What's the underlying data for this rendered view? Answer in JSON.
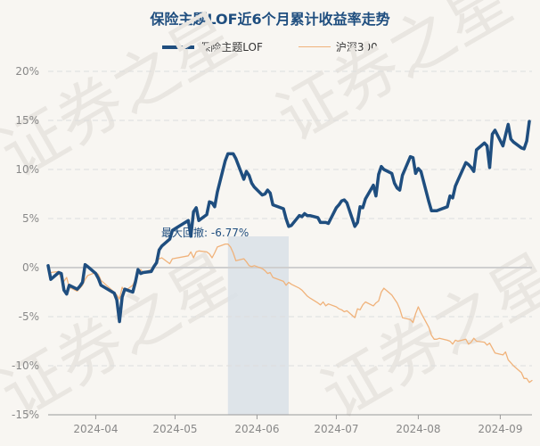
{
  "chart_data": {
    "type": "line",
    "title": "保险主题LOF近6个月累计收益率走势",
    "y_unit": "%",
    "ylim": [
      -15,
      20
    ],
    "y_ticks": [
      20,
      15,
      10,
      5,
      0,
      -5,
      -10,
      -15
    ],
    "y_tick_labels": [
      "20%",
      "15%",
      "10%",
      "5%",
      "0%",
      "-5%",
      "-10%",
      "-15%"
    ],
    "xlim": [
      "2024-03-14",
      "2024-09-13"
    ],
    "x_ticks": [
      "2024-04-01",
      "2024-05-01",
      "2024-06-01",
      "2024-07-01",
      "2024-08-01",
      "2024-09-01"
    ],
    "x_tick_labels": [
      "2024-04",
      "2024-05",
      "2024-06",
      "2024-07",
      "2024-08",
      "2024-09"
    ],
    "grid": true,
    "legend_position": "top-center",
    "series": [
      {
        "name": "保险主题LOF",
        "color": "#1f4e7f",
        "points": [
          [
            "2024-03-14",
            0.2
          ],
          [
            "2024-03-15",
            -1.2
          ],
          [
            "2024-03-18",
            -0.5
          ],
          [
            "2024-03-19",
            -0.6
          ],
          [
            "2024-03-20",
            -2.3
          ],
          [
            "2024-03-21",
            -2.7
          ],
          [
            "2024-03-22",
            -1.8
          ],
          [
            "2024-03-25",
            -2.2
          ],
          [
            "2024-03-26",
            -1.9
          ],
          [
            "2024-03-27",
            -1.5
          ],
          [
            "2024-03-28",
            0.3
          ],
          [
            "2024-03-29",
            0.1
          ],
          [
            "2024-04-01",
            -0.6
          ],
          [
            "2024-04-02",
            -1.1
          ],
          [
            "2024-04-03",
            -1.8
          ],
          [
            "2024-04-08",
            -2.6
          ],
          [
            "2024-04-09",
            -3.3
          ],
          [
            "2024-04-10",
            -5.5
          ],
          [
            "2024-04-11",
            -3.0
          ],
          [
            "2024-04-12",
            -2.2
          ],
          [
            "2024-04-15",
            -2.5
          ],
          [
            "2024-04-16",
            -1.5
          ],
          [
            "2024-04-17",
            -0.2
          ],
          [
            "2024-04-18",
            -0.6
          ],
          [
            "2024-04-19",
            -0.5
          ],
          [
            "2024-04-22",
            -0.4
          ],
          [
            "2024-04-23",
            0.1
          ],
          [
            "2024-04-24",
            0.5
          ],
          [
            "2024-04-25",
            1.8
          ],
          [
            "2024-04-26",
            2.2
          ],
          [
            "2024-04-29",
            2.9
          ],
          [
            "2024-04-30",
            3.8
          ],
          [
            "2024-05-06",
            4.8
          ],
          [
            "2024-05-07",
            3.2
          ],
          [
            "2024-05-08",
            5.7
          ],
          [
            "2024-05-09",
            6.1
          ],
          [
            "2024-05-10",
            4.8
          ],
          [
            "2024-05-13",
            5.4
          ],
          [
            "2024-05-14",
            6.7
          ],
          [
            "2024-05-15",
            6.6
          ],
          [
            "2024-05-16",
            6.2
          ],
          [
            "2024-05-17",
            7.7
          ],
          [
            "2024-05-20",
            10.9
          ],
          [
            "2024-05-21",
            11.6
          ],
          [
            "2024-05-22",
            11.6
          ],
          [
            "2024-05-23",
            11.6
          ],
          [
            "2024-05-24",
            11.1
          ],
          [
            "2024-05-27",
            9.0
          ],
          [
            "2024-05-28",
            9.8
          ],
          [
            "2024-05-29",
            9.4
          ],
          [
            "2024-05-30",
            8.6
          ],
          [
            "2024-05-31",
            8.2
          ],
          [
            "2024-06-03",
            7.4
          ],
          [
            "2024-06-04",
            7.5
          ],
          [
            "2024-06-05",
            7.9
          ],
          [
            "2024-06-06",
            7.6
          ],
          [
            "2024-06-07",
            6.4
          ],
          [
            "2024-06-11",
            6.0
          ],
          [
            "2024-06-12",
            5.0
          ],
          [
            "2024-06-13",
            4.2
          ],
          [
            "2024-06-14",
            4.3
          ],
          [
            "2024-06-17",
            5.3
          ],
          [
            "2024-06-18",
            5.2
          ],
          [
            "2024-06-19",
            5.5
          ],
          [
            "2024-06-20",
            5.3
          ],
          [
            "2024-06-21",
            5.3
          ],
          [
            "2024-06-24",
            5.1
          ],
          [
            "2024-06-25",
            4.6
          ],
          [
            "2024-06-26",
            4.6
          ],
          [
            "2024-06-27",
            4.6
          ],
          [
            "2024-06-28",
            4.5
          ],
          [
            "2024-07-01",
            6.1
          ],
          [
            "2024-07-02",
            6.4
          ],
          [
            "2024-07-03",
            6.8
          ],
          [
            "2024-07-04",
            6.9
          ],
          [
            "2024-07-05",
            6.6
          ],
          [
            "2024-07-08",
            4.2
          ],
          [
            "2024-07-09",
            4.6
          ],
          [
            "2024-07-10",
            6.2
          ],
          [
            "2024-07-11",
            6.1
          ],
          [
            "2024-07-12",
            7.0
          ],
          [
            "2024-07-15",
            8.4
          ],
          [
            "2024-07-16",
            7.3
          ],
          [
            "2024-07-17",
            9.5
          ],
          [
            "2024-07-18",
            10.3
          ],
          [
            "2024-07-19",
            10.0
          ],
          [
            "2024-07-22",
            9.6
          ],
          [
            "2024-07-23",
            8.6
          ],
          [
            "2024-07-24",
            8.1
          ],
          [
            "2024-07-25",
            7.9
          ],
          [
            "2024-07-26",
            9.4
          ],
          [
            "2024-07-29",
            11.3
          ],
          [
            "2024-07-30",
            11.2
          ],
          [
            "2024-07-31",
            9.6
          ],
          [
            "2024-08-01",
            10.1
          ],
          [
            "2024-08-02",
            9.8
          ],
          [
            "2024-08-05",
            6.7
          ],
          [
            "2024-08-06",
            5.8
          ],
          [
            "2024-08-07",
            5.8
          ],
          [
            "2024-08-08",
            5.8
          ],
          [
            "2024-08-09",
            5.9
          ],
          [
            "2024-08-12",
            6.2
          ],
          [
            "2024-08-13",
            7.3
          ],
          [
            "2024-08-14",
            7.1
          ],
          [
            "2024-08-15",
            8.3
          ],
          [
            "2024-08-16",
            8.9
          ],
          [
            "2024-08-19",
            10.7
          ],
          [
            "2024-08-20",
            10.5
          ],
          [
            "2024-08-21",
            10.2
          ],
          [
            "2024-08-22",
            9.8
          ],
          [
            "2024-08-23",
            12.0
          ],
          [
            "2024-08-26",
            12.7
          ],
          [
            "2024-08-27",
            12.4
          ],
          [
            "2024-08-28",
            10.2
          ],
          [
            "2024-08-29",
            13.6
          ],
          [
            "2024-08-30",
            14.0
          ],
          [
            "2024-09-02",
            12.4
          ],
          [
            "2024-09-03",
            13.5
          ],
          [
            "2024-09-04",
            14.6
          ],
          [
            "2024-09-05",
            13.1
          ],
          [
            "2024-09-06",
            12.8
          ],
          [
            "2024-09-09",
            12.2
          ],
          [
            "2024-09-10",
            12.1
          ],
          [
            "2024-09-11",
            12.9
          ],
          [
            "2024-09-12",
            14.9
          ]
        ]
      },
      {
        "name": "沪深300",
        "color": "#f0b27a",
        "points": [
          [
            "2024-03-14",
            -0.3
          ],
          [
            "2024-03-15",
            -0.5
          ],
          [
            "2024-03-18",
            -0.4
          ],
          [
            "2024-03-19",
            -1.2
          ],
          [
            "2024-03-20",
            -1.4
          ],
          [
            "2024-03-21",
            -1.0
          ],
          [
            "2024-03-22",
            -2.0
          ],
          [
            "2024-03-25",
            -2.4
          ],
          [
            "2024-03-26",
            -2.1
          ],
          [
            "2024-03-27",
            -1.8
          ],
          [
            "2024-03-28",
            -1.2
          ],
          [
            "2024-03-29",
            -0.8
          ],
          [
            "2024-04-01",
            -0.5
          ],
          [
            "2024-04-02",
            -0.7
          ],
          [
            "2024-04-03",
            -1.3
          ],
          [
            "2024-04-08",
            -2.5
          ],
          [
            "2024-04-09",
            -2.8
          ],
          [
            "2024-04-10",
            -3.2
          ],
          [
            "2024-04-11",
            -2.0
          ],
          [
            "2024-04-12",
            -2.4
          ],
          [
            "2024-04-15",
            -1.8
          ],
          [
            "2024-04-16",
            -1.2
          ],
          [
            "2024-04-17",
            -0.6
          ],
          [
            "2024-04-18",
            -0.2
          ],
          [
            "2024-04-19",
            -0.5
          ],
          [
            "2024-04-22",
            -0.2
          ],
          [
            "2024-04-23",
            -0.1
          ],
          [
            "2024-04-24",
            0.6
          ],
          [
            "2024-04-25",
            0.9
          ],
          [
            "2024-04-26",
            1.0
          ],
          [
            "2024-04-29",
            0.4
          ],
          [
            "2024-04-30",
            0.9
          ],
          [
            "2024-05-06",
            1.2
          ],
          [
            "2024-05-07",
            1.6
          ],
          [
            "2024-05-08",
            1.0
          ],
          [
            "2024-05-09",
            1.6
          ],
          [
            "2024-05-10",
            1.7
          ],
          [
            "2024-05-13",
            1.6
          ],
          [
            "2024-05-14",
            1.4
          ],
          [
            "2024-05-15",
            1.0
          ],
          [
            "2024-05-16",
            1.5
          ],
          [
            "2024-05-17",
            2.1
          ],
          [
            "2024-05-20",
            2.4
          ],
          [
            "2024-05-21",
            2.4
          ],
          [
            "2024-05-22",
            2.1
          ],
          [
            "2024-05-23",
            1.5
          ],
          [
            "2024-05-24",
            0.7
          ],
          [
            "2024-05-27",
            0.9
          ],
          [
            "2024-05-28",
            0.6
          ],
          [
            "2024-05-29",
            0.2
          ],
          [
            "2024-05-30",
            0.1
          ],
          [
            "2024-05-31",
            0.2
          ],
          [
            "2024-06-03",
            -0.1
          ],
          [
            "2024-06-04",
            -0.3
          ],
          [
            "2024-06-05",
            -0.6
          ],
          [
            "2024-06-06",
            -0.5
          ],
          [
            "2024-06-07",
            -1.0
          ],
          [
            "2024-06-11",
            -1.4
          ],
          [
            "2024-06-12",
            -1.8
          ],
          [
            "2024-06-13",
            -1.5
          ],
          [
            "2024-06-14",
            -1.7
          ],
          [
            "2024-06-17",
            -2.1
          ],
          [
            "2024-06-18",
            -2.3
          ],
          [
            "2024-06-19",
            -2.6
          ],
          [
            "2024-06-20",
            -2.9
          ],
          [
            "2024-06-21",
            -3.1
          ],
          [
            "2024-06-24",
            -3.6
          ],
          [
            "2024-06-25",
            -3.8
          ],
          [
            "2024-06-26",
            -3.5
          ],
          [
            "2024-06-27",
            -3.9
          ],
          [
            "2024-06-28",
            -3.7
          ],
          [
            "2024-07-01",
            -4.0
          ],
          [
            "2024-07-02",
            -4.2
          ],
          [
            "2024-07-03",
            -4.3
          ],
          [
            "2024-07-04",
            -4.5
          ],
          [
            "2024-07-05",
            -4.4
          ],
          [
            "2024-07-08",
            -5.1
          ],
          [
            "2024-07-09",
            -4.2
          ],
          [
            "2024-07-10",
            -4.3
          ],
          [
            "2024-07-11",
            -3.8
          ],
          [
            "2024-07-12",
            -3.5
          ],
          [
            "2024-07-15",
            -3.9
          ],
          [
            "2024-07-16",
            -3.6
          ],
          [
            "2024-07-17",
            -3.4
          ],
          [
            "2024-07-18",
            -2.5
          ],
          [
            "2024-07-19",
            -2.1
          ],
          [
            "2024-07-22",
            -2.8
          ],
          [
            "2024-07-23",
            -3.2
          ],
          [
            "2024-07-24",
            -3.6
          ],
          [
            "2024-07-25",
            -4.2
          ],
          [
            "2024-07-26",
            -5.1
          ],
          [
            "2024-07-29",
            -5.3
          ],
          [
            "2024-07-30",
            -5.6
          ],
          [
            "2024-07-31",
            -4.7
          ],
          [
            "2024-08-01",
            -4.0
          ],
          [
            "2024-08-02",
            -4.6
          ],
          [
            "2024-08-05",
            -6.1
          ],
          [
            "2024-08-06",
            -6.9
          ],
          [
            "2024-08-07",
            -7.3
          ],
          [
            "2024-08-08",
            -7.3
          ],
          [
            "2024-08-09",
            -7.2
          ],
          [
            "2024-08-12",
            -7.4
          ],
          [
            "2024-08-13",
            -7.5
          ],
          [
            "2024-08-14",
            -7.8
          ],
          [
            "2024-08-15",
            -7.4
          ],
          [
            "2024-08-16",
            -7.5
          ],
          [
            "2024-08-19",
            -7.3
          ],
          [
            "2024-08-20",
            -7.8
          ],
          [
            "2024-08-21",
            -7.6
          ],
          [
            "2024-08-22",
            -7.2
          ],
          [
            "2024-08-23",
            -7.5
          ],
          [
            "2024-08-26",
            -7.6
          ],
          [
            "2024-08-27",
            -7.9
          ],
          [
            "2024-08-28",
            -7.7
          ],
          [
            "2024-08-29",
            -8.2
          ],
          [
            "2024-08-30",
            -8.7
          ],
          [
            "2024-09-02",
            -8.9
          ],
          [
            "2024-09-03",
            -8.6
          ],
          [
            "2024-09-04",
            -9.4
          ],
          [
            "2024-09-05",
            -9.7
          ],
          [
            "2024-09-06",
            -10.0
          ],
          [
            "2024-09-09",
            -10.7
          ],
          [
            "2024-09-10",
            -11.3
          ],
          [
            "2024-09-11",
            -11.3
          ],
          [
            "2024-09-12",
            -11.7
          ],
          [
            "2024-09-13",
            -11.5
          ]
        ]
      }
    ],
    "annotations": [
      {
        "type": "shaded-range",
        "label": "最大回撤: -6.77%",
        "x_start": "2024-05-21",
        "x_end": "2024-06-13",
        "color": "#d9e0e8"
      }
    ],
    "watermark": "证券之星"
  }
}
